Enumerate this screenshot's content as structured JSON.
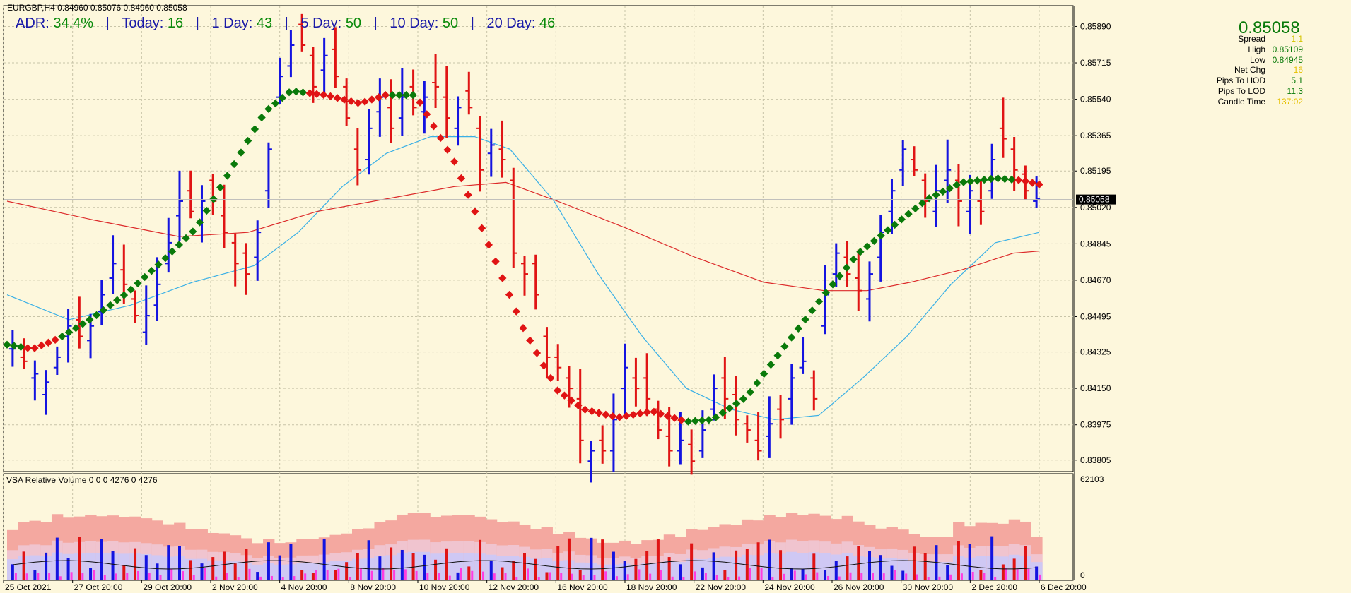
{
  "header": {
    "symbol_line": "EURGBP,H4  0.84960 0.85076 0.84960 0.85058",
    "adr_label": "ADR:",
    "adr_value": "34.4%",
    "today_label": "Today:",
    "today_value": "16",
    "day1_label": "1 Day:",
    "day1_value": "43",
    "day5_label": "5 Day:",
    "day5_value": "50",
    "day10_label": "10 Day:",
    "day10_value": "50",
    "day20_label": "20 Day:",
    "day20_value": "46"
  },
  "price_panel": {
    "big_price": "0.85058",
    "rows": [
      {
        "label": "Spread",
        "value": "1.1",
        "color": "#d4c400"
      },
      {
        "label": "High",
        "value": "0.85109",
        "color": "#0a7a0a"
      },
      {
        "label": "Low",
        "value": "0.84945",
        "color": "#0a7a0a"
      },
      {
        "label": "Net Chg",
        "value": "16",
        "color": "#e6c000"
      },
      {
        "label": "Pips To HOD",
        "value": "5.1",
        "color": "#0a7a0a"
      },
      {
        "label": "Pips To LOD",
        "value": "11.3",
        "color": "#0a7a0a"
      },
      {
        "label": "Candle Time",
        "value": "137:02",
        "color": "#e6c000"
      }
    ],
    "current_price_tag": "0.85058"
  },
  "volume_panel": {
    "label": "VSA Relative Volume 0 0 0 4276 0 4276",
    "ymax_label": "62103",
    "ymin_label": "0"
  },
  "colors": {
    "background": "#fdf7dc",
    "bull": "#1414e0",
    "bear": "#e01414",
    "trend_up": "#0a7a0a",
    "trend_down": "#e01414",
    "ma_fast": "#3ab0e6",
    "ma_slow": "#dc2a2a",
    "grid": "#c8c4a8"
  },
  "chart_data": {
    "type": "bar",
    "title": "EURGBP,H4",
    "y_axis_ticks": [
      0.83805,
      0.83975,
      0.8415,
      0.84325,
      0.84495,
      0.8467,
      0.84845,
      0.8502,
      0.85195,
      0.85365,
      0.8554,
      0.85715,
      0.8589
    ],
    "y_tick_labels": [
      "0.83805",
      "0.83975",
      "0.84150",
      "0.84325",
      "0.84495",
      "0.84670",
      "0.84845",
      "0.85020",
      "0.85195",
      "0.85365",
      "0.85540",
      "0.85715",
      "0.85890"
    ],
    "ylim": [
      0.8375,
      0.8599
    ],
    "x_tick_labels": [
      "25 Oct 2021",
      "27 Oct 20:00",
      "29 Oct 20:00",
      "2 Nov 20:00",
      "4 Nov 20:00",
      "8 Nov 20:00",
      "10 Nov 20:00",
      "12 Nov 20:00",
      "16 Nov 20:00",
      "18 Nov 20:00",
      "22 Nov 20:00",
      "24 Nov 20:00",
      "26 Nov 20:00",
      "30 Nov 20:00",
      "2 Dec 20:00",
      "6 Dec 20:00"
    ],
    "price_path": [
      [
        0.8434,
        0.8434
      ],
      [
        0.843,
        0.8428
      ],
      [
        0.842,
        0.8422
      ],
      [
        0.8412,
        0.8418
      ],
      [
        0.8425,
        0.843
      ],
      [
        0.844,
        0.8445
      ],
      [
        0.8448,
        0.844
      ],
      [
        0.8438,
        0.8445
      ],
      [
        0.8452,
        0.846
      ],
      [
        0.8468,
        0.8475
      ],
      [
        0.8472,
        0.8465
      ],
      [
        0.8458,
        0.845
      ],
      [
        0.8442,
        0.845
      ],
      [
        0.8455,
        0.8465
      ],
      [
        0.8475,
        0.8485
      ],
      [
        0.8498,
        0.8505
      ],
      [
        0.851,
        0.85
      ],
      [
        0.8495,
        0.8505
      ],
      [
        0.8515,
        0.8505
      ],
      [
        0.8498,
        0.849
      ],
      [
        0.8485,
        0.8475
      ],
      [
        0.848,
        0.847
      ],
      [
        0.8478,
        0.849
      ],
      [
        0.851,
        0.853
      ],
      [
        0.8555,
        0.8565
      ],
      [
        0.857,
        0.858
      ],
      [
        0.859,
        0.858
      ],
      [
        0.8575,
        0.856
      ],
      [
        0.8568,
        0.8575
      ],
      [
        0.8578,
        0.8565
      ],
      [
        0.856,
        0.8545
      ],
      [
        0.853,
        0.852
      ],
      [
        0.8525,
        0.854
      ],
      [
        0.8548,
        0.8555
      ],
      [
        0.855,
        0.854
      ],
      [
        0.8545,
        0.8555
      ],
      [
        0.856,
        0.855
      ],
      [
        0.8548,
        0.8555
      ],
      [
        0.8562,
        0.856
      ],
      [
        0.8555,
        0.8545
      ],
      [
        0.854,
        0.855
      ],
      [
        0.8558,
        0.855
      ],
      [
        0.854,
        0.852
      ],
      [
        0.8528,
        0.8532
      ],
      [
        0.853,
        0.8525
      ],
      [
        0.8515,
        0.848
      ],
      [
        0.8475,
        0.847
      ],
      [
        0.8475,
        0.846
      ],
      [
        0.844,
        0.843
      ],
      [
        0.843,
        0.8425
      ],
      [
        0.842,
        0.8415
      ],
      [
        0.841,
        0.839
      ],
      [
        0.838,
        0.8385
      ],
      [
        0.839,
        0.8385
      ],
      [
        0.8385,
        0.84
      ],
      [
        0.8415,
        0.8425
      ],
      [
        0.842,
        0.8415
      ],
      [
        0.842,
        0.841
      ],
      [
        0.8405,
        0.8395
      ],
      [
        0.8392,
        0.8385
      ],
      [
        0.8385,
        0.839
      ],
      [
        0.8388,
        0.838
      ],
      [
        0.8385,
        0.8395
      ],
      [
        0.8405,
        0.8415
      ],
      [
        0.842,
        0.841
      ],
      [
        0.8412,
        0.84
      ],
      [
        0.8398,
        0.8395
      ],
      [
        0.839,
        0.8385
      ],
      [
        0.8392,
        0.8398
      ],
      [
        0.8405,
        0.84
      ],
      [
        0.841,
        0.842
      ],
      [
        0.8425,
        0.8428
      ],
      [
        0.842,
        0.841
      ],
      [
        0.8445,
        0.846
      ],
      [
        0.847,
        0.848
      ],
      [
        0.8478,
        0.847
      ],
      [
        0.8468,
        0.8462
      ],
      [
        0.8458,
        0.847
      ],
      [
        0.8478,
        0.849
      ],
      [
        0.85,
        0.851
      ],
      [
        0.852,
        0.853
      ],
      [
        0.8525,
        0.852
      ],
      [
        0.8515,
        0.8505
      ],
      [
        0.85,
        0.851
      ],
      [
        0.8515,
        0.852
      ],
      [
        0.8515,
        0.8505
      ],
      [
        0.85,
        0.851
      ],
      [
        0.8505,
        0.85
      ],
      [
        0.851,
        0.8525
      ],
      [
        0.854,
        0.8535
      ],
      [
        0.853,
        0.852
      ],
      [
        0.8518,
        0.851
      ],
      [
        0.8505,
        0.8506
      ]
    ],
    "trend_path": [
      [
        0,
        0.8436
      ],
      [
        6,
        0.8434
      ],
      [
        12,
        0.8439
      ],
      [
        20,
        0.8449
      ],
      [
        28,
        0.8461
      ],
      [
        36,
        0.8476
      ],
      [
        44,
        0.8492
      ],
      [
        52,
        0.852
      ],
      [
        60,
        0.8548
      ],
      [
        66,
        0.8558
      ],
      [
        74,
        0.8556
      ],
      [
        82,
        0.8552
      ],
      [
        88,
        0.8556
      ],
      [
        95,
        0.8556
      ],
      [
        104,
        0.8524
      ],
      [
        112,
        0.8484
      ],
      [
        120,
        0.8444
      ],
      [
        128,
        0.8414
      ],
      [
        134,
        0.8405
      ],
      [
        142,
        0.8401
      ],
      [
        150,
        0.8404
      ],
      [
        158,
        0.8399
      ],
      [
        164,
        0.84
      ],
      [
        172,
        0.8411
      ],
      [
        180,
        0.8433
      ],
      [
        190,
        0.846
      ],
      [
        198,
        0.848
      ],
      [
        206,
        0.8493
      ],
      [
        214,
        0.8506
      ],
      [
        222,
        0.8514
      ],
      [
        230,
        0.8516
      ],
      [
        236,
        0.8515
      ],
      [
        240,
        0.8513
      ]
    ],
    "ma_fast_path": [
      [
        0,
        0.846
      ],
      [
        14,
        0.8448
      ],
      [
        28,
        0.8455
      ],
      [
        42,
        0.8466
      ],
      [
        56,
        0.8474
      ],
      [
        66,
        0.849
      ],
      [
        76,
        0.8512
      ],
      [
        86,
        0.8528
      ],
      [
        96,
        0.8536
      ],
      [
        106,
        0.8536
      ],
      [
        114,
        0.853
      ],
      [
        124,
        0.8505
      ],
      [
        134,
        0.847
      ],
      [
        144,
        0.844
      ],
      [
        154,
        0.8415
      ],
      [
        164,
        0.8405
      ],
      [
        174,
        0.84
      ],
      [
        184,
        0.8402
      ],
      [
        194,
        0.842
      ],
      [
        204,
        0.844
      ],
      [
        214,
        0.8465
      ],
      [
        224,
        0.8485
      ],
      [
        234,
        0.849
      ]
    ],
    "ma_slow_path": [
      [
        0,
        0.8505
      ],
      [
        20,
        0.8496
      ],
      [
        40,
        0.8488
      ],
      [
        56,
        0.849
      ],
      [
        72,
        0.85
      ],
      [
        88,
        0.8506
      ],
      [
        104,
        0.8512
      ],
      [
        116,
        0.8514
      ],
      [
        128,
        0.8505
      ],
      [
        144,
        0.8492
      ],
      [
        160,
        0.8478
      ],
      [
        176,
        0.8466
      ],
      [
        190,
        0.8462
      ],
      [
        200,
        0.8462
      ],
      [
        210,
        0.8466
      ],
      [
        222,
        0.8472
      ],
      [
        234,
        0.848
      ],
      [
        240,
        0.8481
      ]
    ],
    "volume_ylim": [
      0,
      62103
    ],
    "legend": "none",
    "grid": true
  }
}
